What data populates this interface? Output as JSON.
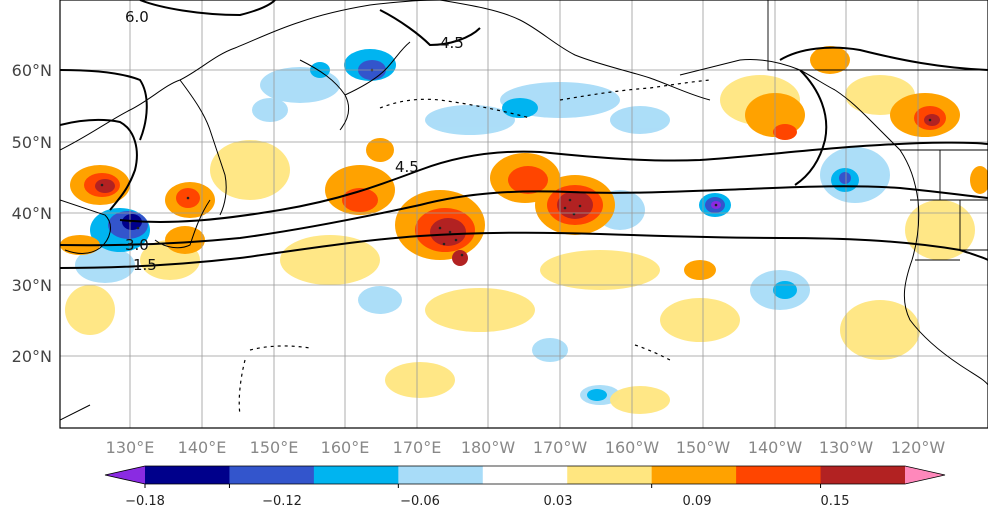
{
  "map": {
    "lat_labels": [
      "60°N",
      "50°N",
      "40°N",
      "30°N",
      "20°N"
    ],
    "lon_labels": [
      "130°E",
      "140°E",
      "150°E",
      "160°E",
      "170°E",
      "180°W",
      "170°W",
      "160°W",
      "150°W",
      "140°W",
      "130°W",
      "120°W"
    ],
    "contour_labels": [
      "6.0",
      "4.5",
      "4.5",
      "3.0",
      "1.5"
    ]
  },
  "colorbar": {
    "tick_labels": [
      "−0.18",
      "−0.12",
      "−0.06",
      "0.03",
      "0.09",
      "0.15"
    ],
    "colors": [
      "#8a2be2",
      "#00008b",
      "#3355cc",
      "#00b4f0",
      "#a8dcf8",
      "#ffffff",
      "#ffe680",
      "#ffa200",
      "#ff4500",
      "#b22222",
      "#ff88bb"
    ]
  }
}
